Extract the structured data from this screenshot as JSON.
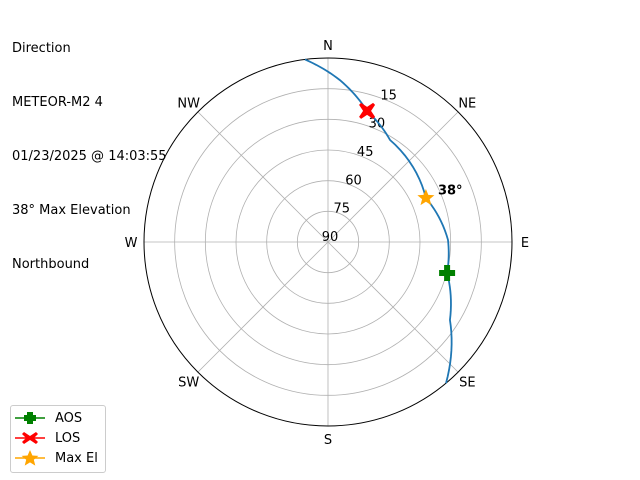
{
  "title_lines": [
    "Direction",
    "METEOR-M2 4",
    "01/23/2025 @ 14:03:55",
    "38° Max Elevation",
    "Northbound"
  ],
  "chart_data": {
    "type": "polar-line",
    "theta_direction": "clockwise",
    "theta_zero": "north",
    "radial_axis": "elevation (90 at center, 0 at edge)",
    "rlim": [
      90,
      0
    ],
    "grid": true,
    "direction_labels": [
      "N",
      "NE",
      "E",
      "SE",
      "S",
      "SW",
      "W",
      "NW"
    ],
    "radial_tick_labels": [
      "15",
      "30",
      "45",
      "60",
      "75",
      "90"
    ],
    "radial_ticks": [
      15,
      30,
      45,
      60,
      75,
      90
    ],
    "track": {
      "azimuth": [
        352.8,
        4.2,
        16.6,
        31.3,
        65.8,
        89,
        104.6,
        122.6,
        140.1
      ],
      "elevation": [
        0,
        10.6,
        23.1,
        31.6,
        37.5,
        31.3,
        29.8,
        19.2,
        0
      ],
      "color": "#1f77b4"
    },
    "markers": [
      {
        "name": "AOS",
        "azimuth": 104.6,
        "elevation": 29.8,
        "color": "#008000",
        "shape": "plus-filled"
      },
      {
        "name": "LOS",
        "azimuth": 16.6,
        "elevation": 23.1,
        "color": "#ff0000",
        "shape": "x-filled"
      },
      {
        "name": "Max El",
        "azimuth": 65.8,
        "elevation": 37.5,
        "color": "#ffa500",
        "shape": "star"
      }
    ],
    "annotation": {
      "text": "38°",
      "azimuth": 65.8,
      "elevation": 38
    },
    "legend_position": "lower-left"
  }
}
